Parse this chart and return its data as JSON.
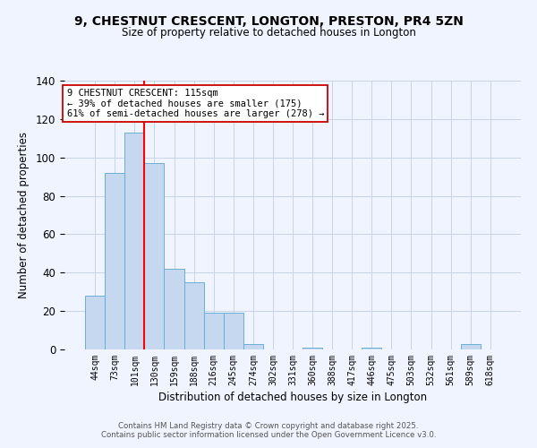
{
  "title": "9, CHESTNUT CRESCENT, LONGTON, PRESTON, PR4 5ZN",
  "subtitle": "Size of property relative to detached houses in Longton",
  "xlabel": "Distribution of detached houses by size in Longton",
  "ylabel": "Number of detached properties",
  "bar_labels": [
    "44sqm",
    "73sqm",
    "101sqm",
    "130sqm",
    "159sqm",
    "188sqm",
    "216sqm",
    "245sqm",
    "274sqm",
    "302sqm",
    "331sqm",
    "360sqm",
    "388sqm",
    "417sqm",
    "446sqm",
    "475sqm",
    "503sqm",
    "532sqm",
    "561sqm",
    "589sqm",
    "618sqm"
  ],
  "bar_values": [
    28,
    92,
    113,
    97,
    42,
    35,
    19,
    19,
    3,
    0,
    0,
    1,
    0,
    0,
    1,
    0,
    0,
    0,
    0,
    3,
    0
  ],
  "bar_color": "#c5d8f0",
  "bar_edge_color": "#6aaed6",
  "red_line_x": 2.5,
  "annotation_title": "9 CHESTNUT CRESCENT: 115sqm",
  "annotation_line1": "← 39% of detached houses are smaller (175)",
  "annotation_line2": "61% of semi-detached houses are larger (278) →",
  "ylim": [
    0,
    140
  ],
  "yticks": [
    0,
    20,
    40,
    60,
    80,
    100,
    120,
    140
  ],
  "footer1": "Contains HM Land Registry data © Crown copyright and database right 2025.",
  "footer2": "Contains public sector information licensed under the Open Government Licence v3.0.",
  "background_color": "#f0f4ff",
  "grid_color": "#c8d4e8"
}
